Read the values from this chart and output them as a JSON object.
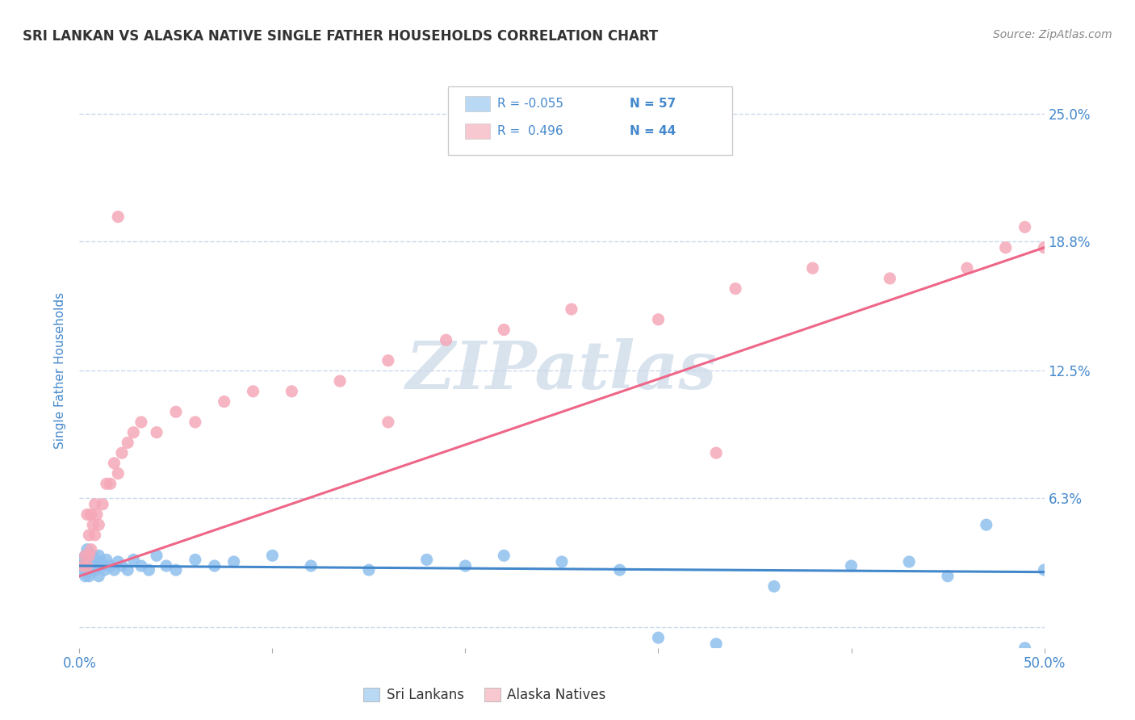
{
  "title": "SRI LANKAN VS ALASKA NATIVE SINGLE FATHER HOUSEHOLDS CORRELATION CHART",
  "source": "Source: ZipAtlas.com",
  "ylabel": "Single Father Households",
  "watermark": "ZIPatlas",
  "xlim": [
    0.0,
    0.5
  ],
  "ylim": [
    -0.01,
    0.26
  ],
  "xtick_vals": [
    0.0,
    0.1,
    0.2,
    0.3,
    0.4,
    0.5
  ],
  "xtick_labels": [
    "0.0%",
    "",
    "",
    "",
    "",
    "50.0%"
  ],
  "ytick_vals": [
    0.0,
    0.063,
    0.125,
    0.188,
    0.25
  ],
  "ytick_labels": [
    "",
    "6.3%",
    "12.5%",
    "18.8%",
    "25.0%"
  ],
  "sri_color": "#90C0EE",
  "alaska_color": "#F5A8B8",
  "sri_line_color": "#4488CC",
  "alaska_line_color": "#EE6688",
  "legend_sri_color": "#B8D8F4",
  "legend_alaska_color": "#F8C8D0",
  "legend_label_sri": "Sri Lankans",
  "legend_label_alaska": "Alaska Natives",
  "bg_color": "#FFFFFF",
  "grid_color": "#C8D8EC",
  "title_color": "#333333",
  "source_color": "#888888",
  "tick_color": "#4488CC",
  "ylabel_color": "#4488CC",
  "watermark_color": "#C8D8E8",
  "sri_trend_y0": 0.03,
  "sri_trend_y1": 0.027,
  "alaska_trend_y0": 0.025,
  "alaska_trend_y1": 0.185,
  "sri_x": [
    0.001,
    0.002,
    0.002,
    0.003,
    0.003,
    0.003,
    0.004,
    0.004,
    0.004,
    0.005,
    0.005,
    0.005,
    0.006,
    0.006,
    0.007,
    0.007,
    0.008,
    0.008,
    0.009,
    0.01,
    0.01,
    0.01,
    0.011,
    0.012,
    0.013,
    0.014,
    0.016,
    0.018,
    0.02,
    0.022,
    0.025,
    0.028,
    0.032,
    0.036,
    0.04,
    0.045,
    0.05,
    0.06,
    0.07,
    0.08,
    0.1,
    0.12,
    0.15,
    0.18,
    0.2,
    0.22,
    0.25,
    0.28,
    0.3,
    0.33,
    0.36,
    0.4,
    0.43,
    0.45,
    0.47,
    0.49,
    0.5
  ],
  "sri_y": [
    0.03,
    0.028,
    0.032,
    0.025,
    0.03,
    0.035,
    0.028,
    0.033,
    0.038,
    0.025,
    0.03,
    0.035,
    0.028,
    0.032,
    0.03,
    0.035,
    0.028,
    0.033,
    0.03,
    0.025,
    0.03,
    0.035,
    0.032,
    0.03,
    0.028,
    0.033,
    0.03,
    0.028,
    0.032,
    0.03,
    0.028,
    0.033,
    0.03,
    0.028,
    0.035,
    0.03,
    0.028,
    0.033,
    0.03,
    0.032,
    0.035,
    0.03,
    0.028,
    0.033,
    0.03,
    0.035,
    0.032,
    0.028,
    -0.005,
    -0.008,
    0.02,
    0.03,
    0.032,
    0.025,
    0.05,
    -0.01,
    0.028
  ],
  "alaska_x": [
    0.002,
    0.003,
    0.004,
    0.004,
    0.005,
    0.005,
    0.006,
    0.006,
    0.007,
    0.008,
    0.008,
    0.009,
    0.01,
    0.012,
    0.014,
    0.016,
    0.018,
    0.02,
    0.022,
    0.025,
    0.028,
    0.032,
    0.04,
    0.05,
    0.06,
    0.075,
    0.09,
    0.11,
    0.135,
    0.16,
    0.19,
    0.22,
    0.255,
    0.3,
    0.34,
    0.38,
    0.42,
    0.46,
    0.48,
    0.49,
    0.5,
    0.16,
    0.33,
    0.02
  ],
  "alaska_y": [
    0.03,
    0.035,
    0.03,
    0.055,
    0.035,
    0.045,
    0.038,
    0.055,
    0.05,
    0.045,
    0.06,
    0.055,
    0.05,
    0.06,
    0.07,
    0.07,
    0.08,
    0.075,
    0.085,
    0.09,
    0.095,
    0.1,
    0.095,
    0.105,
    0.1,
    0.11,
    0.115,
    0.115,
    0.12,
    0.13,
    0.14,
    0.145,
    0.155,
    0.15,
    0.165,
    0.175,
    0.17,
    0.175,
    0.185,
    0.195,
    0.185,
    0.1,
    0.085,
    0.2
  ]
}
